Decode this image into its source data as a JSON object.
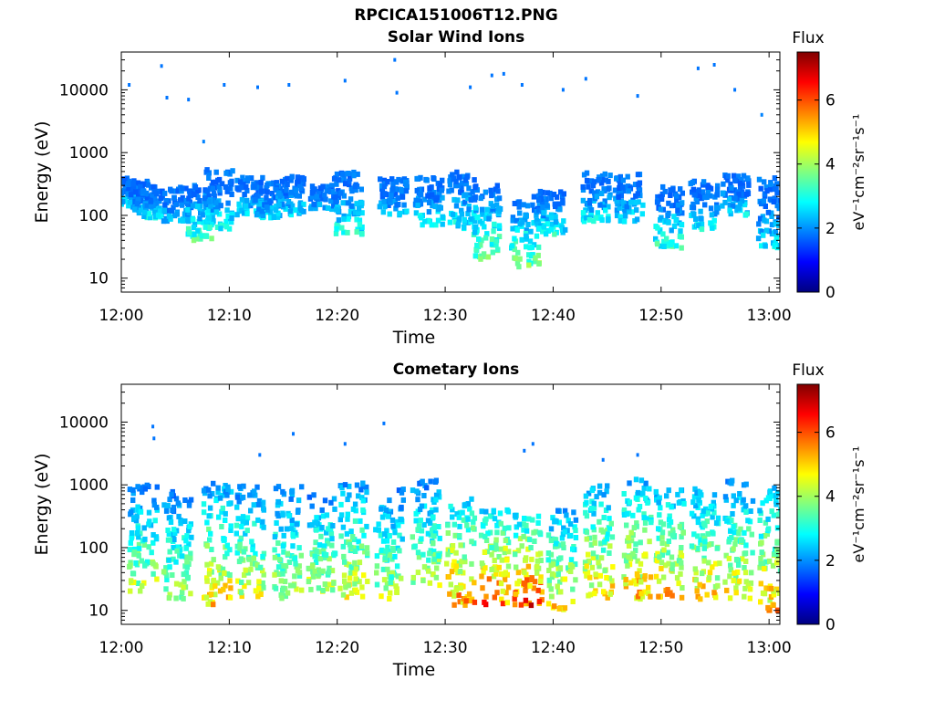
{
  "figure": {
    "title": "RPCICA151006T12.PNG"
  },
  "colorbar": {
    "label": "Flux",
    "unit_label": "eV⁻¹cm⁻²sr⁻¹s⁻¹",
    "range": [
      0,
      7.5
    ],
    "ticks": [
      "0",
      "2",
      "4",
      "6"
    ],
    "colormap": "jet"
  },
  "chart_data": [
    {
      "type": "heatmap",
      "title": "Solar Wind Ions",
      "xlabel": "Time",
      "ylabel": "Energy (eV)",
      "xlim": [
        "12:00",
        "13:01"
      ],
      "xticks": [
        "12:00",
        "12:10",
        "12:20",
        "12:30",
        "12:40",
        "12:50",
        "13:00"
      ],
      "ylim": [
        6,
        40000
      ],
      "yscale": "log",
      "yticks": [
        "10",
        "100",
        "1000",
        "10000"
      ],
      "zlim": [
        0,
        7.5
      ],
      "z_label": "Flux",
      "bursts": [
        {
          "t": 0.2,
          "e_low": 150,
          "e_high": 400,
          "peak": 2.6
        },
        {
          "t": 1.6,
          "e_low": 120,
          "e_high": 350,
          "peak": 2.6
        },
        {
          "t": 2.3,
          "e_low": 90,
          "e_high": 250,
          "peak": 2.8
        },
        {
          "t": 5.0,
          "e_low": 80,
          "e_high": 300,
          "peak": 2.5
        },
        {
          "t": 7.2,
          "e_low": 40,
          "e_high": 300,
          "peak": 3.4
        },
        {
          "t": 8.8,
          "e_low": 60,
          "e_high": 550,
          "peak": 2.9
        },
        {
          "t": 11.8,
          "e_low": 100,
          "e_high": 400,
          "peak": 2.7
        },
        {
          "t": 13.3,
          "e_low": 90,
          "e_high": 350,
          "peak": 2.6
        },
        {
          "t": 15.4,
          "e_low": 100,
          "e_high": 450,
          "peak": 2.7
        },
        {
          "t": 18.6,
          "e_low": 120,
          "e_high": 300,
          "peak": 2.5
        },
        {
          "t": 20.8,
          "e_low": 50,
          "e_high": 500,
          "peak": 3.0
        },
        {
          "t": 25.0,
          "e_low": 100,
          "e_high": 400,
          "peak": 2.5
        },
        {
          "t": 28.3,
          "e_low": 70,
          "e_high": 400,
          "peak": 2.9
        },
        {
          "t": 31.4,
          "e_low": 60,
          "e_high": 500,
          "peak": 3.0
        },
        {
          "t": 33.6,
          "e_low": 20,
          "e_high": 300,
          "peak": 3.7
        },
        {
          "t": 37.2,
          "e_low": 15,
          "e_high": 200,
          "peak": 3.7
        },
        {
          "t": 39.6,
          "e_low": 50,
          "e_high": 250,
          "peak": 3.0
        },
        {
          "t": 43.8,
          "e_low": 80,
          "e_high": 500,
          "peak": 2.8
        },
        {
          "t": 46.8,
          "e_low": 80,
          "e_high": 450,
          "peak": 2.8
        },
        {
          "t": 50.5,
          "e_low": 30,
          "e_high": 300,
          "peak": 3.2
        },
        {
          "t": 53.8,
          "e_low": 60,
          "e_high": 350,
          "peak": 2.8
        },
        {
          "t": 56.7,
          "e_low": 100,
          "e_high": 450,
          "peak": 2.7
        },
        {
          "t": 60.0,
          "e_low": 30,
          "e_high": 400,
          "peak": 2.8
        }
      ],
      "isolated_points": [
        {
          "t": 0.6,
          "e": 12000,
          "v": 1.8
        },
        {
          "t": 3.6,
          "e": 24000,
          "v": 1.8
        },
        {
          "t": 4.1,
          "e": 7500,
          "v": 1.8
        },
        {
          "t": 6.1,
          "e": 7000,
          "v": 1.8
        },
        {
          "t": 7.5,
          "e": 1500,
          "v": 1.9
        },
        {
          "t": 9.4,
          "e": 12000,
          "v": 1.8
        },
        {
          "t": 12.5,
          "e": 11000,
          "v": 1.8
        },
        {
          "t": 15.4,
          "e": 12000,
          "v": 1.8
        },
        {
          "t": 20.6,
          "e": 14000,
          "v": 1.8
        },
        {
          "t": 25.2,
          "e": 30000,
          "v": 1.8
        },
        {
          "t": 25.4,
          "e": 9000,
          "v": 1.8
        },
        {
          "t": 32.2,
          "e": 11000,
          "v": 1.8
        },
        {
          "t": 34.2,
          "e": 17000,
          "v": 1.8
        },
        {
          "t": 35.3,
          "e": 18000,
          "v": 1.8
        },
        {
          "t": 37.0,
          "e": 12000,
          "v": 1.8
        },
        {
          "t": 40.8,
          "e": 10000,
          "v": 1.8
        },
        {
          "t": 42.9,
          "e": 15000,
          "v": 1.8
        },
        {
          "t": 47.7,
          "e": 8000,
          "v": 1.8
        },
        {
          "t": 53.3,
          "e": 22000,
          "v": 1.8
        },
        {
          "t": 54.8,
          "e": 25000,
          "v": 1.8
        },
        {
          "t": 56.7,
          "e": 10000,
          "v": 1.8
        },
        {
          "t": 59.2,
          "e": 4000,
          "v": 1.9
        }
      ]
    },
    {
      "type": "heatmap",
      "title": "Cometary Ions",
      "xlabel": "Time",
      "ylabel": "Energy (eV)",
      "xlim": [
        "12:00",
        "13:01"
      ],
      "xticks": [
        "12:00",
        "12:10",
        "12:20",
        "12:30",
        "12:40",
        "12:50",
        "13:00"
      ],
      "ylim": [
        6,
        40000
      ],
      "yscale": "log",
      "yticks": [
        "10",
        "100",
        "1000",
        "10000"
      ],
      "zlim": [
        0,
        7.5
      ],
      "z_label": "Flux",
      "bursts": [
        {
          "t": 1.8,
          "e_low": 20,
          "e_high": 1000,
          "peak": 4.3
        },
        {
          "t": 5.0,
          "e_low": 15,
          "e_high": 800,
          "peak": 4.1
        },
        {
          "t": 8.7,
          "e_low": 12,
          "e_high": 1100,
          "peak": 5.0
        },
        {
          "t": 11.7,
          "e_low": 15,
          "e_high": 1000,
          "peak": 4.5
        },
        {
          "t": 15.2,
          "e_low": 15,
          "e_high": 1000,
          "peak": 4.3
        },
        {
          "t": 18.4,
          "e_low": 20,
          "e_high": 700,
          "peak": 4.4
        },
        {
          "t": 21.3,
          "e_low": 15,
          "e_high": 1100,
          "peak": 4.7
        },
        {
          "t": 24.6,
          "e_low": 15,
          "e_high": 900,
          "peak": 4.2
        },
        {
          "t": 28.0,
          "e_low": 25,
          "e_high": 1200,
          "peak": 4.3
        },
        {
          "t": 31.2,
          "e_low": 12,
          "e_high": 600,
          "peak": 5.6
        },
        {
          "t": 34.4,
          "e_low": 12,
          "e_high": 400,
          "peak": 6.0
        },
        {
          "t": 37.5,
          "e_low": 12,
          "e_high": 350,
          "peak": 6.2
        },
        {
          "t": 40.6,
          "e_low": 10,
          "e_high": 400,
          "peak": 5.0
        },
        {
          "t": 44.0,
          "e_low": 15,
          "e_high": 1000,
          "peak": 5.1
        },
        {
          "t": 47.6,
          "e_low": 15,
          "e_high": 1300,
          "peak": 5.2
        },
        {
          "t": 50.6,
          "e_low": 15,
          "e_high": 900,
          "peak": 5.2
        },
        {
          "t": 53.9,
          "e_low": 15,
          "e_high": 900,
          "peak": 5.0
        },
        {
          "t": 57.0,
          "e_low": 15,
          "e_high": 1200,
          "peak": 4.8
        },
        {
          "t": 60.2,
          "e_low": 10,
          "e_high": 900,
          "peak": 5.2
        }
      ],
      "isolated_points": [
        {
          "t": 2.8,
          "e": 8500,
          "v": 1.8
        },
        {
          "t": 2.9,
          "e": 5500,
          "v": 1.8
        },
        {
          "t": 12.7,
          "e": 3000,
          "v": 1.8
        },
        {
          "t": 15.8,
          "e": 6500,
          "v": 1.8
        },
        {
          "t": 20.6,
          "e": 4500,
          "v": 1.8
        },
        {
          "t": 24.2,
          "e": 9500,
          "v": 1.8
        },
        {
          "t": 37.2,
          "e": 3500,
          "v": 1.8
        },
        {
          "t": 38.0,
          "e": 4500,
          "v": 1.8
        },
        {
          "t": 44.5,
          "e": 2500,
          "v": 1.8
        },
        {
          "t": 47.7,
          "e": 3000,
          "v": 1.8
        }
      ]
    }
  ]
}
